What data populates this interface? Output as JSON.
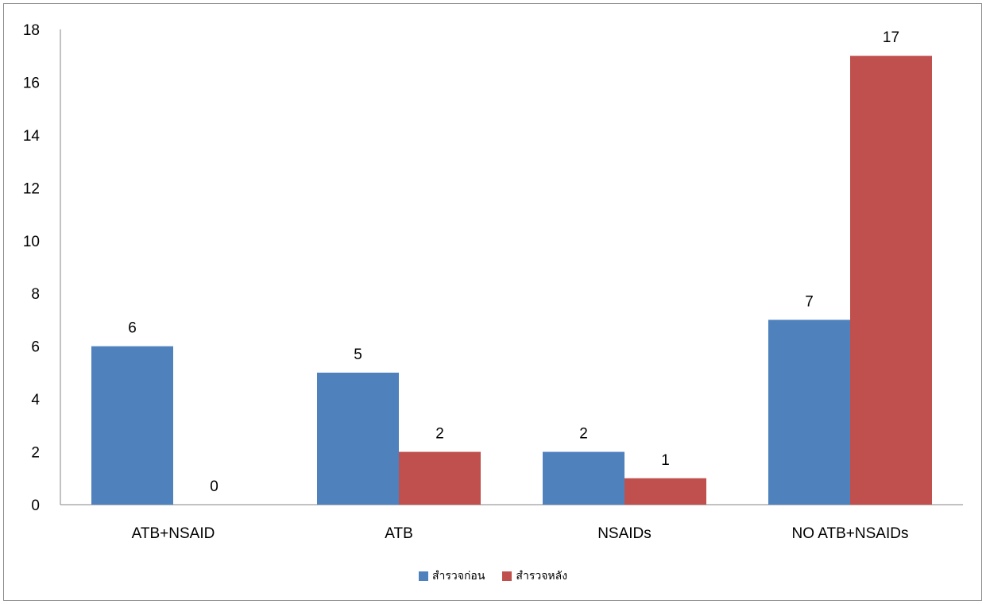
{
  "chart_data": {
    "type": "bar",
    "categories": [
      "ATB+NSAID",
      "ATB",
      "NSAIDs",
      "NO ATB+NSAIDs"
    ],
    "series": [
      {
        "name": "สำรวจก่อน",
        "values": [
          6,
          5,
          2,
          7
        ],
        "color": "#4F81BD"
      },
      {
        "name": "สำรวจหลัง",
        "values": [
          0,
          2,
          1,
          17
        ],
        "color": "#C0504D"
      }
    ],
    "title": "",
    "xlabel": "",
    "ylabel": "",
    "ylim": [
      0,
      18
    ],
    "yticks": [
      "0",
      "2",
      "4",
      "6",
      "8",
      "10",
      "12",
      "14",
      "16",
      "18"
    ],
    "data_labels": true,
    "grid": false,
    "legend_position": "bottom"
  }
}
